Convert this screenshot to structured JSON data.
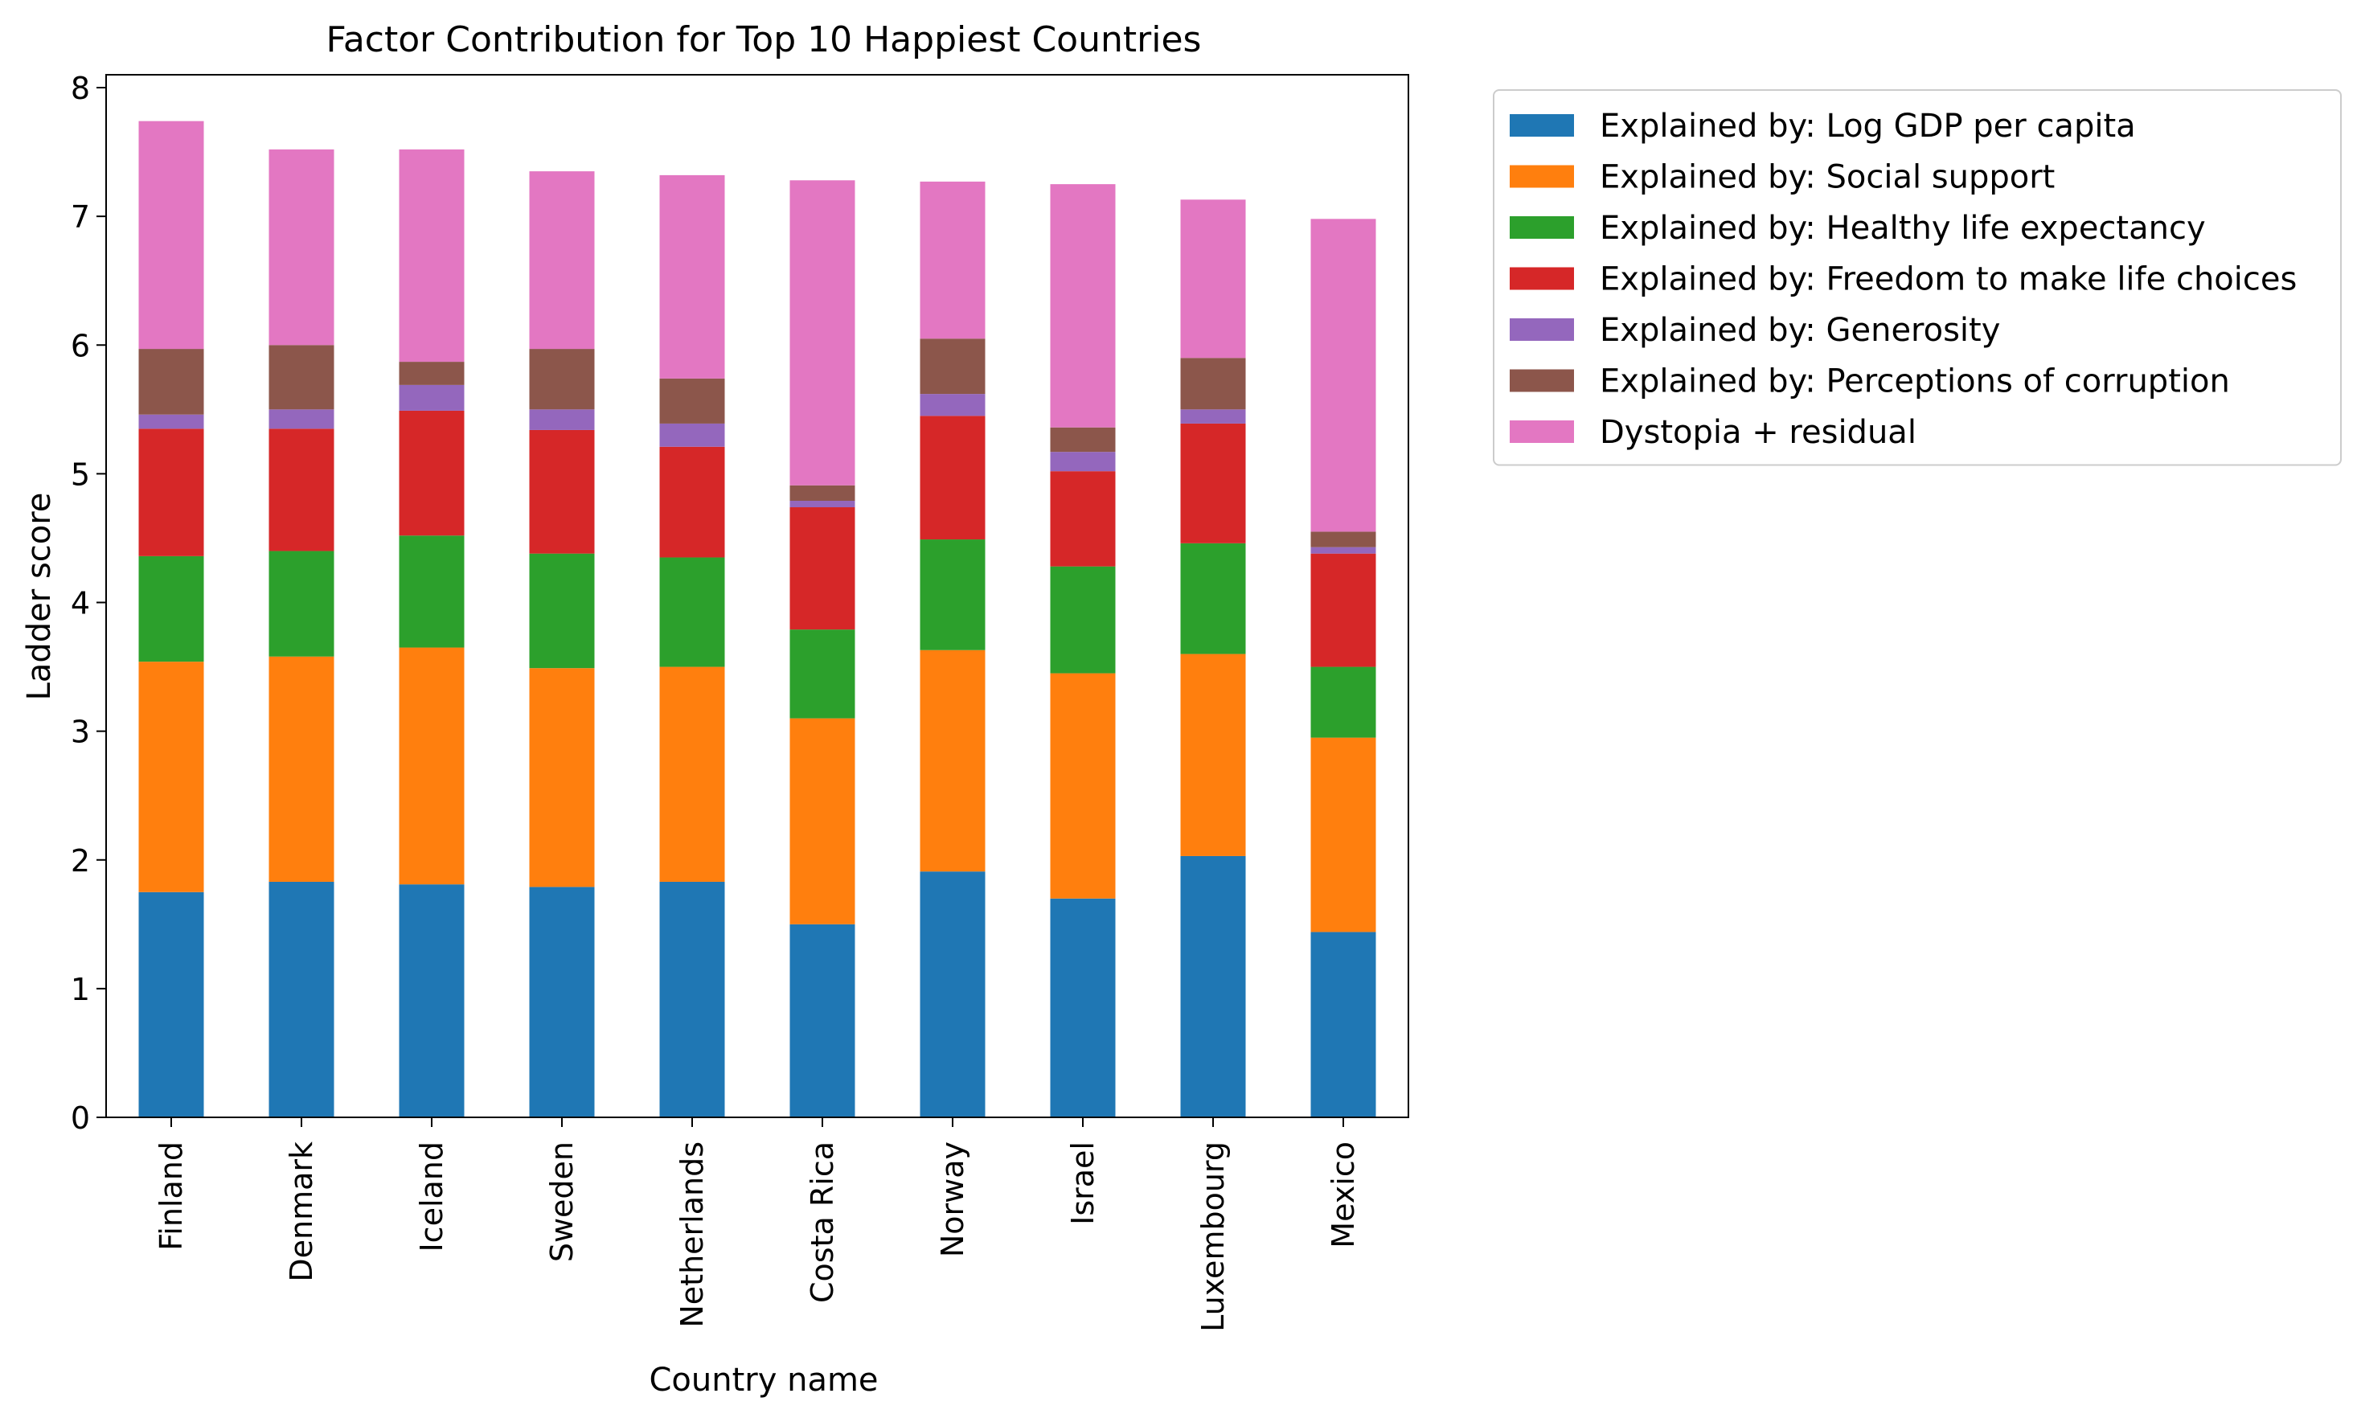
{
  "chart_data": {
    "type": "bar",
    "stacked": true,
    "title": "Factor Contribution for Top 10 Happiest Countries",
    "xlabel": "Country name",
    "ylabel": "Ladder score",
    "ylim": [
      0,
      8.1
    ],
    "yticks": [
      "0",
      "1",
      "2",
      "3",
      "4",
      "5",
      "6",
      "7",
      "8"
    ],
    "grid": false,
    "legend_position": "outside-right-top",
    "categories": [
      "Finland",
      "Denmark",
      "Iceland",
      "Sweden",
      "Netherlands",
      "Costa Rica",
      "Norway",
      "Israel",
      "Luxembourg",
      "Mexico"
    ],
    "series": [
      {
        "name": "Explained by: Log GDP per capita",
        "color": "#1f77b4",
        "values": [
          1.75,
          1.83,
          1.81,
          1.79,
          1.83,
          1.5,
          1.91,
          1.7,
          2.03,
          1.44
        ]
      },
      {
        "name": "Explained by: Social support",
        "color": "#ff7f0e",
        "values": [
          1.79,
          1.75,
          1.84,
          1.7,
          1.67,
          1.6,
          1.72,
          1.75,
          1.57,
          1.51
        ]
      },
      {
        "name": "Explained by: Healthy life expectancy",
        "color": "#2ca02c",
        "values": [
          0.82,
          0.82,
          0.87,
          0.89,
          0.85,
          0.69,
          0.86,
          0.83,
          0.86,
          0.55
        ]
      },
      {
        "name": "Explained by: Freedom to make life choices",
        "color": "#d62728",
        "values": [
          0.99,
          0.95,
          0.97,
          0.96,
          0.86,
          0.95,
          0.96,
          0.74,
          0.93,
          0.88
        ]
      },
      {
        "name": "Explained by: Generosity",
        "color": "#9467bd",
        "values": [
          0.11,
          0.15,
          0.2,
          0.16,
          0.18,
          0.05,
          0.17,
          0.15,
          0.11,
          0.05
        ]
      },
      {
        "name": "Explained by: Perceptions of corruption",
        "color": "#8c564b",
        "values": [
          0.51,
          0.5,
          0.18,
          0.47,
          0.35,
          0.12,
          0.43,
          0.19,
          0.4,
          0.12
        ]
      },
      {
        "name": "Dystopia + residual",
        "color": "#e377c2",
        "values": [
          1.77,
          1.52,
          1.65,
          1.38,
          1.58,
          2.37,
          1.22,
          1.89,
          1.23,
          2.43
        ]
      }
    ]
  }
}
